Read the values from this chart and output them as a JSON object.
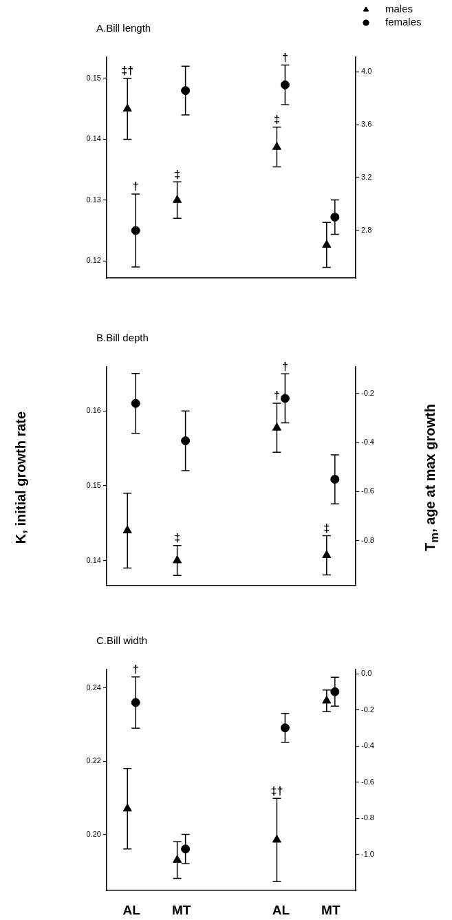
{
  "chart_data": [
    {
      "type": "scatter",
      "title": "A.Bill length",
      "categories": [
        "AL",
        "MT",
        null,
        "AL",
        "MT"
      ],
      "legend": "top right",
      "tick_labels": "y",
      "ylim": [
        0.1172,
        0.1535
      ],
      "yticks": [
        0.12,
        0.13,
        0.14,
        0.15
      ],
      "y2lim": [
        2.44,
        4.11
      ],
      "y2ticks": [
        2.8,
        3.2,
        3.6,
        {
          "value": 4,
          "label": "4.0"
        }
      ],
      "series": [
        {
          "name": "males",
          "color": "#000000",
          "marker": "triangle",
          "values": [
            0.145,
            0.13,
            null,
            null,
            null
          ],
          "errors": [
            0.005,
            0.003,
            null,
            null,
            null
          ]
        },
        {
          "name": "females",
          "color": "#000000",
          "marker": "circle",
          "values": [
            0.125,
            0.148,
            null,
            null,
            null
          ],
          "errors": [
            0.006,
            0.004,
            null,
            null,
            null
          ]
        },
        {
          "color": "#000000",
          "marker": "triangle",
          "axis": "y2",
          "values": [
            null,
            null,
            null,
            3.43,
            2.69
          ],
          "errors": [
            null,
            null,
            null,
            0.15,
            0.17
          ]
        },
        {
          "color": "#000000",
          "marker": "circle",
          "axis": "y2",
          "values": [
            null,
            null,
            null,
            3.9,
            2.9
          ],
          "errors": [
            null,
            null,
            null,
            0.15,
            0.13
          ]
        }
      ],
      "annotations": [
        {
          "text": "‡†",
          "x": "AL",
          "y": 0.15
        },
        {
          "text": "†",
          "x": "AL",
          "y": 0.131
        },
        {
          "text": "‡",
          "x": "MT",
          "y": 0.133
        },
        "‡",
        "†"
      ]
    },
    {
      "type": "scatter",
      "title": "B.Bill depth",
      "categories": [
        "AL",
        "MT",
        null,
        "AL",
        "MT"
      ],
      "tick_labels": "y",
      "ylabel": "K, initial growth rate",
      "y2label": "T$_{m}$, age at max growth",
      "ylim": [
        0.1367,
        0.1659
      ],
      "yticks": [
        0.14,
        0.15,
        0.16
      ],
      "y2lim": [
        -0.982,
        -0.091
      ],
      "y2ticks": [
        -0.8,
        -0.6,
        -0.4,
        -0.2
      ],
      "series": [
        {
          "color": "#000000",
          "marker": "triangle",
          "values": [
            0.144,
            0.14,
            null,
            null,
            null
          ],
          "errors": [
            0.005,
            0.002,
            null,
            null,
            null
          ]
        },
        {
          "color": "#000000",
          "marker": "circle",
          "values": [
            0.161,
            0.156,
            null,
            null,
            null
          ],
          "errors": [
            0.004,
            0.004,
            null,
            null,
            null
          ]
        },
        {
          "color": "#000000",
          "marker": "triangle",
          "axis": "y2",
          "values": [
            null,
            null,
            null,
            -0.34,
            -0.86
          ],
          "errors": [
            null,
            null,
            null,
            0.1,
            0.08
          ]
        },
        {
          "color": "#000000",
          "marker": "circle",
          "axis": "y2",
          "values": [
            null,
            null,
            null,
            -0.22,
            -0.55
          ],
          "errors": [
            null,
            null,
            null,
            0.1,
            0.1
          ]
        }
      ],
      "annotations": [
        {
          "text": "‡",
          "x": "MT",
          "y": 0.142
        },
        "†",
        "†",
        "‡"
      ]
    },
    {
      "type": "scatter",
      "title": "C.Bill width",
      "categories": [
        "AL",
        "MT",
        null,
        "AL",
        "MT"
      ],
      "ylim": [
        0.1847,
        0.245
      ],
      "yticks": [
        {
          "value": 0.2,
          "label": "0.20"
        },
        0.22,
        0.24
      ],
      "y2lim": [
        -1.2,
        0.023
      ],
      "y2ticks": [
        {
          "value": -1,
          "label": "-1.0"
        },
        -0.8,
        -0.6,
        -0.4,
        -0.2,
        {
          "value": 0,
          "label": "0.0"
        }
      ],
      "series": [
        {
          "color": "#000000",
          "marker": "triangle",
          "values": [
            0.207,
            0.193,
            null,
            null,
            null
          ],
          "errors": [
            0.011,
            0.005,
            null,
            null,
            null
          ]
        },
        {
          "color": "#000000",
          "marker": "circle",
          "values": [
            0.236,
            0.196,
            null,
            null,
            null
          ],
          "errors": [
            0.007,
            0.004,
            null,
            null,
            null
          ]
        },
        {
          "color": "#000000",
          "marker": "triangle",
          "axis": "y2",
          "values": [
            null,
            null,
            null,
            -0.92,
            -0.15
          ],
          "errors": [
            null,
            null,
            null,
            0.23,
            0.06
          ]
        },
        {
          "color": "#000000",
          "marker": "circle",
          "axis": "y2",
          "values": [
            null,
            null,
            null,
            -0.3,
            -0.1
          ],
          "errors": [
            null,
            null,
            null,
            0.08,
            0.08
          ]
        }
      ],
      "annotations": [
        {
          "text": "†",
          "x": "AL",
          "y": 0.243
        },
        "‡†"
      ]
    }
  ]
}
